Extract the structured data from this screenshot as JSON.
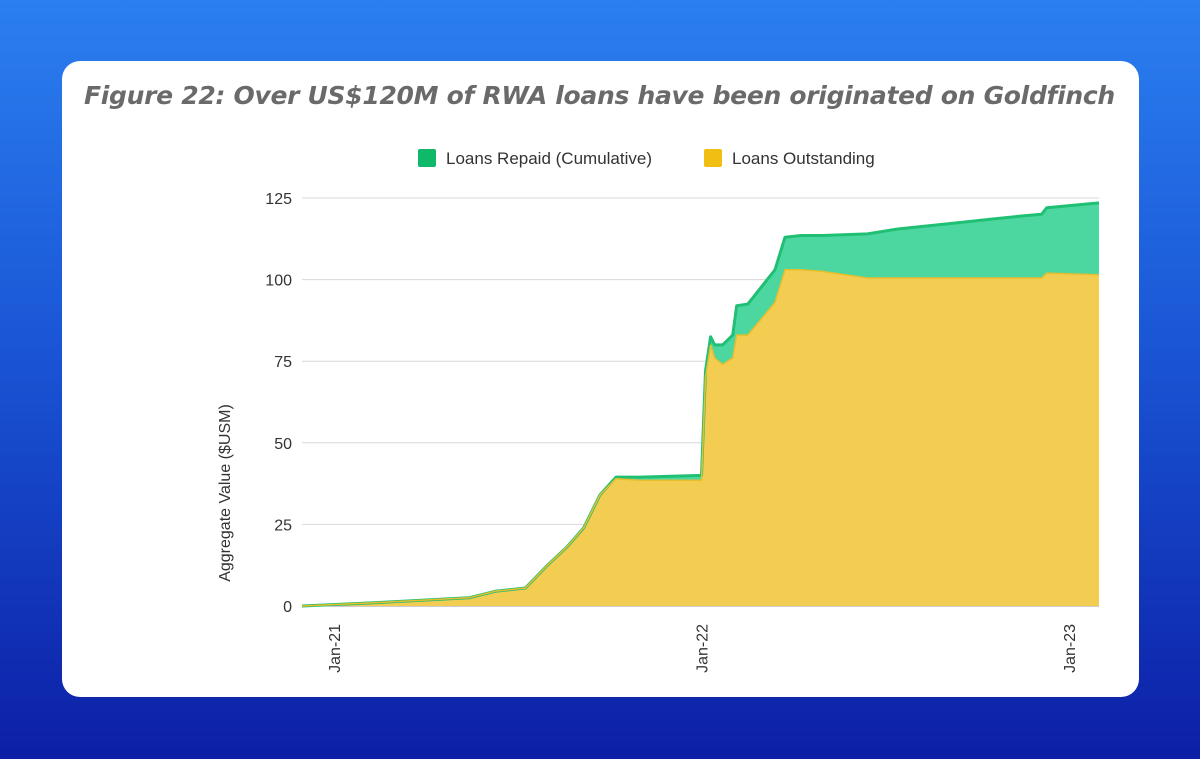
{
  "title": "Figure 22: Over US$120M of RWA loans have been originated on Goldfinch",
  "colors": {
    "repaid_fill": "#4cd6a0",
    "repaid_line": "#20c074",
    "repaid_legend": "#10b86a",
    "outstanding_fill": "#f2cd52",
    "outstanding_legend": "#f1bf14",
    "grid": "#d8d8d8"
  },
  "chart_data": {
    "type": "area",
    "stacked": true,
    "xlabel": "",
    "ylabel": "Aggregate Value ($USM)",
    "ylim": [
      0,
      125
    ],
    "yticks": [
      0,
      25,
      50,
      75,
      100,
      125
    ],
    "xticks": [
      {
        "label": "Jan-21",
        "value": "2021-01-01"
      },
      {
        "label": "Jan-22",
        "value": "2022-01-01"
      },
      {
        "label": "Jan-23",
        "value": "2023-01-01"
      }
    ],
    "xlim": [
      "2020-11-30",
      "2023-01-31"
    ],
    "grid": true,
    "legend_position": "top",
    "series": [
      {
        "name": "Loans Repaid (Cumulative)",
        "color": "#10b86a",
        "values": [
          [
            "2020-11-30",
            0
          ],
          [
            "2021-02-10",
            0
          ],
          [
            "2021-05-15",
            0
          ],
          [
            "2021-06-10",
            0
          ],
          [
            "2021-07-10",
            0
          ],
          [
            "2021-08-01",
            0
          ],
          [
            "2021-08-20",
            0
          ],
          [
            "2021-09-06",
            0
          ],
          [
            "2021-09-22",
            0
          ],
          [
            "2021-10-08",
            0.5
          ],
          [
            "2021-11-01",
            1
          ],
          [
            "2022-01-01",
            1.5
          ],
          [
            "2022-01-05",
            2
          ],
          [
            "2022-01-10",
            2.5
          ],
          [
            "2022-01-14",
            4
          ],
          [
            "2022-01-22",
            6
          ],
          [
            "2022-02-01",
            7
          ],
          [
            "2022-02-05",
            9
          ],
          [
            "2022-02-16",
            9.5
          ],
          [
            "2022-03-15",
            10
          ],
          [
            "2022-03-25",
            10
          ],
          [
            "2022-04-10",
            10.5
          ],
          [
            "2022-05-01",
            11
          ],
          [
            "2022-06-15",
            13.5
          ],
          [
            "2022-07-15",
            15
          ],
          [
            "2022-08-15",
            16
          ],
          [
            "2022-09-15",
            17
          ],
          [
            "2022-10-15",
            18
          ],
          [
            "2022-11-15",
            19
          ],
          [
            "2022-12-05",
            19.5
          ],
          [
            "2022-12-10",
            20
          ],
          [
            "2023-01-31",
            22
          ]
        ]
      },
      {
        "name": "Loans Outstanding",
        "color": "#f1bf14",
        "values": [
          [
            "2020-11-30",
            0
          ],
          [
            "2021-02-10",
            1
          ],
          [
            "2021-05-15",
            2.5
          ],
          [
            "2021-06-10",
            4.5
          ],
          [
            "2021-07-10",
            5.5
          ],
          [
            "2021-08-01",
            12.5
          ],
          [
            "2021-08-20",
            18
          ],
          [
            "2021-09-06",
            24
          ],
          [
            "2021-09-22",
            34
          ],
          [
            "2021-10-08",
            39
          ],
          [
            "2021-11-01",
            38.5
          ],
          [
            "2022-01-01",
            38.5
          ],
          [
            "2022-01-05",
            70
          ],
          [
            "2022-01-10",
            80
          ],
          [
            "2022-01-14",
            76
          ],
          [
            "2022-01-22",
            74
          ],
          [
            "2022-02-01",
            76
          ],
          [
            "2022-02-05",
            83
          ],
          [
            "2022-02-16",
            83
          ],
          [
            "2022-03-15",
            93
          ],
          [
            "2022-03-25",
            103
          ],
          [
            "2022-04-10",
            103
          ],
          [
            "2022-05-01",
            102.5
          ],
          [
            "2022-06-15",
            100.5
          ],
          [
            "2022-07-15",
            100.5
          ],
          [
            "2022-08-15",
            100.5
          ],
          [
            "2022-09-15",
            100.5
          ],
          [
            "2022-10-15",
            100.5
          ],
          [
            "2022-11-15",
            100.5
          ],
          [
            "2022-12-05",
            100.5
          ],
          [
            "2022-12-10",
            102
          ],
          [
            "2023-01-31",
            101.5
          ]
        ]
      }
    ]
  }
}
